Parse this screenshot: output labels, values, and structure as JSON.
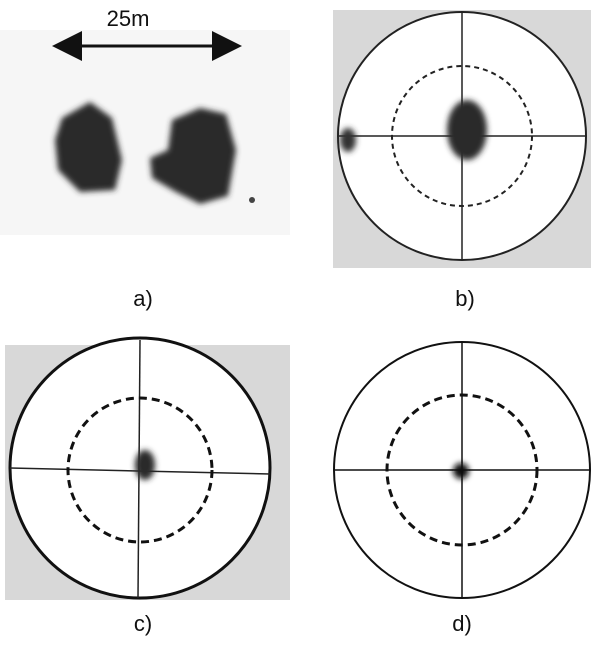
{
  "scale_label": "25m",
  "panels": [
    {
      "label": "a)"
    },
    {
      "label": "b)"
    },
    {
      "label": "c)"
    },
    {
      "label": "d)"
    }
  ]
}
